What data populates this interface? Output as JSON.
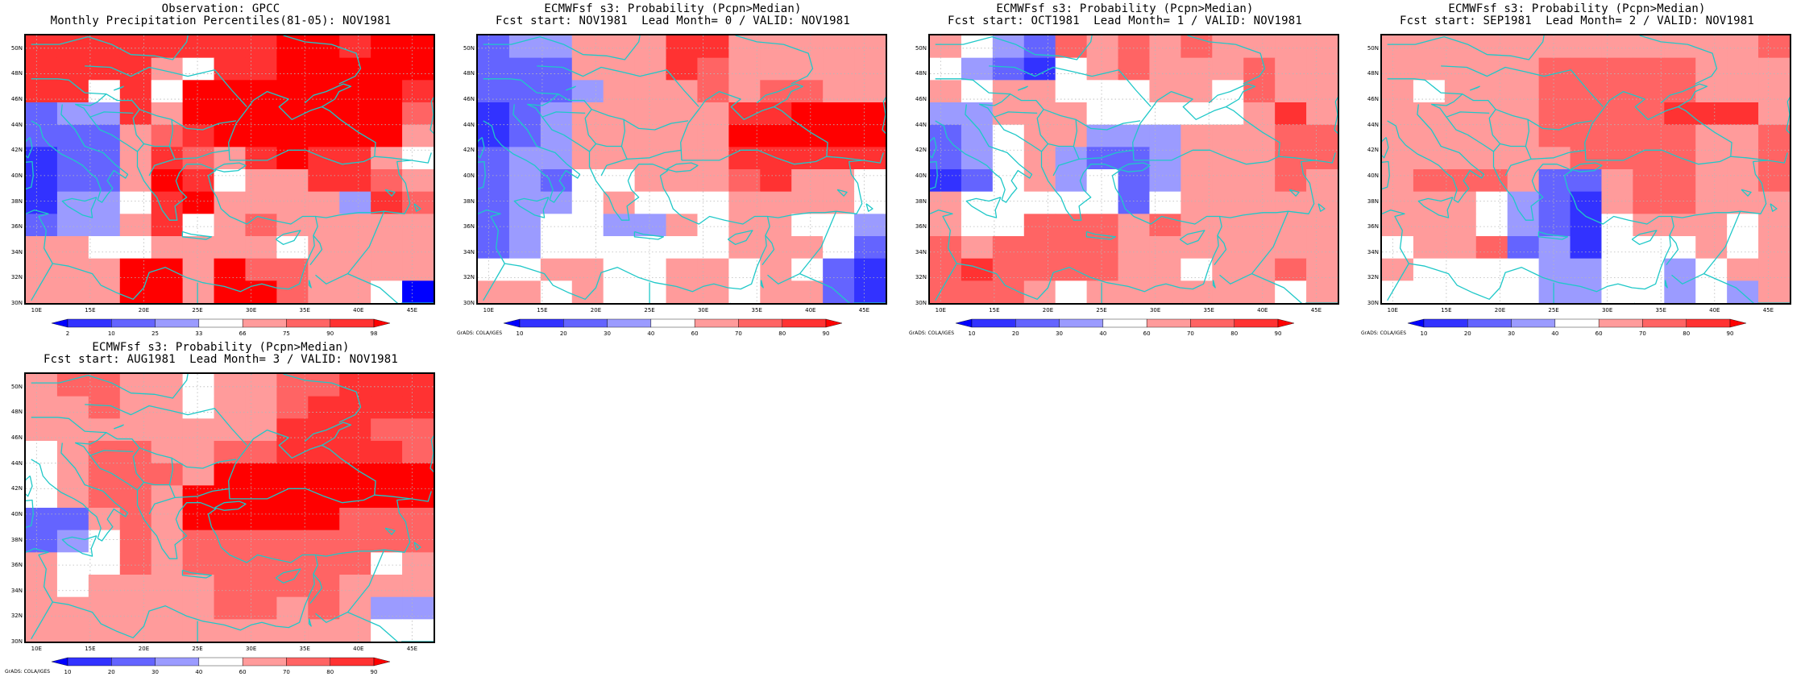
{
  "colorbars": {
    "obs": {
      "colors": [
        "#0000ff",
        "#3232ff",
        "#6464ff",
        "#9b9bff",
        "#ffffff",
        "#ff9b9b",
        "#ff6464",
        "#ff3232",
        "#ff0000"
      ],
      "labels": [
        "2",
        "10",
        "25",
        "33",
        "66",
        "75",
        "90",
        "98"
      ]
    },
    "prob": {
      "colors": [
        "#0000ff",
        "#3232ff",
        "#6464ff",
        "#9b9bff",
        "#ffffff",
        "#ff9b9b",
        "#ff6464",
        "#ff3232",
        "#ff0000"
      ],
      "labels": [
        "10",
        "20",
        "30",
        "40",
        "60",
        "70",
        "80",
        "90"
      ]
    }
  },
  "axes": {
    "lat_labels": [
      "50N",
      "48N",
      "46N",
      "44N",
      "42N",
      "40N",
      "38N",
      "36N",
      "34N",
      "32N",
      "30N"
    ],
    "lon_labels": [
      "10E",
      "15E",
      "20E",
      "25E",
      "30E",
      "35E",
      "40E",
      "45E"
    ],
    "lon_range": [
      9,
      47
    ],
    "lat_range": [
      30,
      51
    ],
    "grid": true
  },
  "panels": [
    {
      "title_line1": "Observation: GPCC",
      "title_line2": "Monthly Precipitation Percentiles(81-05): NOV1981",
      "colorbar": "obs",
      "credit": "",
      "grid_values": [
        "7777777788788",
        "7777547788888",
        "7747488888887",
        "2337588888886",
        "2225678888885",
        "1225765787754",
        "1225874557765",
        "1334785555376",
        "2335745655555",
        "5544555545555",
        "5558858665555",
        "5558858865540"
      ]
    },
    {
      "title_line1": "ECMWFsf s3: Probability (Pcpn>Median)",
      "title_line2": "Fcst start: NOV1981  Lead Month= 0 / VALID: NOV1981",
      "colorbar": "prob",
      "credit": "GrADS: COLA/IGES",
      "grid_values": [
        "2335557755555",
        "2225557655555",
        "2223555656655",
        "1235555577888",
        "1235555588888",
        "2335555577777",
        "2324455567554",
        "2334544455554",
        "2344335455443",
        "2344444455542",
        "4455445545421",
        "5545445545521"
      ]
    },
    {
      "title_line1": "ECMWFsf s3: Probability (Pcpn>Median)",
      "title_line2": "Fcst start: OCT1981  Lead Month= 1 / VALID: NOV1981",
      "colorbar": "prob",
      "credit": "GrADS: COLA/IGES",
      "grid_values": [
        "5432656565555",
        "4321456555655",
        "5455444554655",
        "3355544444575",
        "2345533355566",
        "2345322355566",
        "1245342355565",
        "5444442455555",
        "5446665655555",
        "6566665555555",
        "6766665545565",
        "6665455555545"
      ]
    },
    {
      "title_line1": "ECMWFsf s3: Probability (Pcpn>Median)",
      "title_line2": "Fcst start: SEP1981  Lead Month= 2 / VALID: NOV1981",
      "colorbar": "prob",
      "credit": "GrADS: COLA/IGES",
      "grid_values": [
        "5555555555556",
        "5555566666555",
        "5455566666555",
        "5555566667775",
        "5555566666556",
        "5555556666556",
        "5666522566556",
        "5554321566555",
        "5554321455545",
        "4556231444545",
        "5444433443455",
        "4444433443435"
      ]
    },
    {
      "title_line1": "ECMWFsf s3: Probability (Pcpn>Median)",
      "title_line2": "Fcst start: AUG1981  Lead Month= 3 / VALID: NOV1981",
      "colorbar": "prob",
      "credit": "GrADS: COLA/IGES",
      "grid_values": [
        "5665545566777",
        "5565545567777",
        "5555555577766",
        "4566556677776",
        "4566658888888",
        "4566588888888",
        "2256588888666",
        "2346566666666",
        "5446566666645",
        "5455556666555",
        "5555556656533",
        "5555555555544"
      ]
    }
  ]
}
